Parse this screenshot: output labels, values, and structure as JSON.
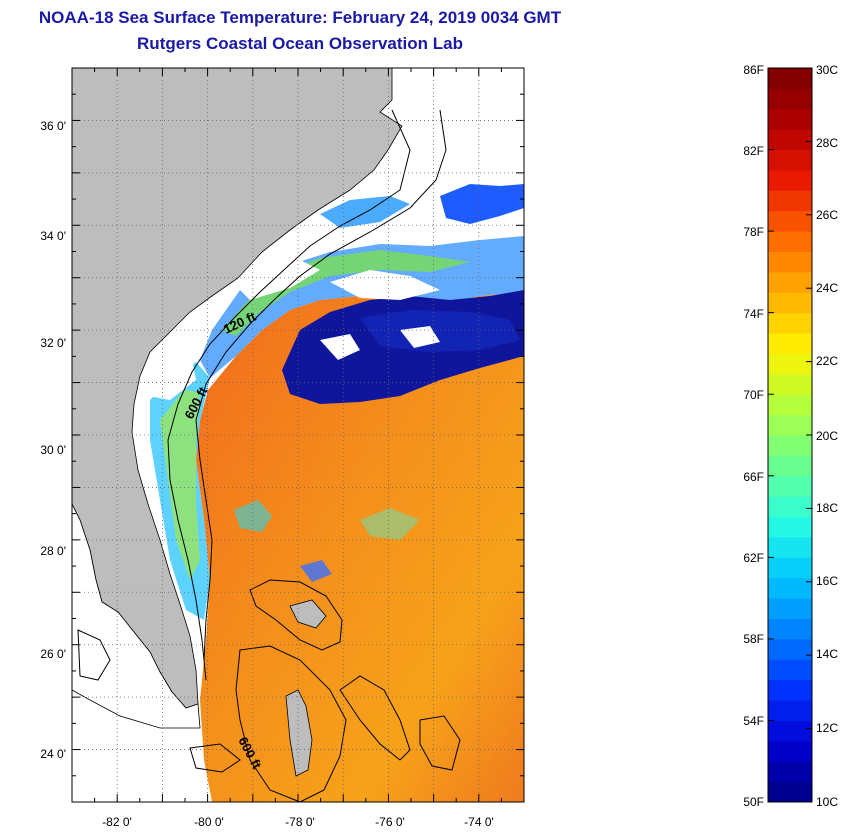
{
  "header": {
    "title": "NOAA-18 Sea Surface Temperature:  February 24, 2019 0034 GMT",
    "subtitle": "Rutgers Coastal Ocean Observation Lab"
  },
  "map": {
    "lat_range": [
      23,
      37
    ],
    "lon_range": [
      -83,
      -73
    ],
    "lat_ticks": [
      "36 0'",
      "34 0'",
      "32 0'",
      "30 0'",
      "28 0'",
      "26 0'",
      "24 0'"
    ],
    "lon_ticks": [
      "-82 0'",
      "-80 0'",
      "-78 0'",
      "-76 0'",
      "-74 0'"
    ],
    "contour_labels": [
      "120 ft",
      "600 ft",
      "600 ft"
    ],
    "colors": {
      "land": "#bdbdbd",
      "cloud": "#ffffff",
      "warm_water": "#f08a1e",
      "cold_water": "#10169c"
    }
  },
  "colorbar": {
    "fahrenheit_labels": [
      "86F",
      "82F",
      "78F",
      "74F",
      "70F",
      "66F",
      "62F",
      "58F",
      "54F",
      "50F"
    ],
    "celsius_labels": [
      "30C",
      "28C",
      "26C",
      "24C",
      "22C",
      "20C",
      "18C",
      "16C",
      "14C",
      "12C",
      "10C"
    ],
    "range_f": [
      50,
      86
    ],
    "range_c": [
      10,
      30
    ],
    "colormap": [
      "#00007f",
      "#0000d0",
      "#0032ff",
      "#0080ff",
      "#00c8ff",
      "#2affe0",
      "#6cff8c",
      "#b2ff3c",
      "#fff200",
      "#ffb000",
      "#ff6a00",
      "#ea1a00",
      "#b00000",
      "#7a0000"
    ]
  }
}
